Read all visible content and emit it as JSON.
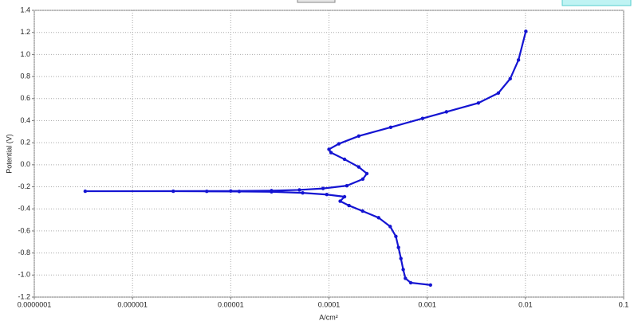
{
  "chart_data": {
    "type": "line",
    "xscale": "log",
    "grid": true,
    "color": "#1414d2",
    "xlabel": "A/cm²",
    "ylabel": "Potential (V)",
    "xlim": [
      1e-07,
      0.1
    ],
    "xticks": [
      {
        "value": 1e-07,
        "label": "0.0000001"
      },
      1e-06,
      1e-05,
      0.0001,
      0.001,
      0.01,
      0.1
    ],
    "ylim": [
      -1.2,
      1.4
    ],
    "yticks": [
      1.4,
      1.2,
      {
        "value": 1.0,
        "label": "1.0"
      },
      0.8,
      0.6,
      0.4,
      0.2,
      {
        "value": 0,
        "label": "0.0"
      },
      -0.2,
      -0.4,
      -0.6,
      -0.8,
      {
        "value": -1.0,
        "label": "-1.0"
      },
      -1.2
    ],
    "x": [
      0.00108,
      0.00068,
      0.0006,
      0.00057,
      0.00054,
      0.00051,
      0.00048,
      0.00042,
      0.00032,
      0.00022,
      0.00016,
      0.00013,
      0.000144,
      9.5e-05,
      5.4e-05,
      2.6e-05,
      1.22e-05,
      5.7e-06,
      2.6e-06,
      3.3e-07,
      1e-05,
      2.6e-05,
      5e-05,
      8.7e-05,
      0.000152,
      0.000221,
      0.000243,
      0.000201,
      0.000144,
      0.000105,
      0.0001,
      0.000126,
      0.000201,
      0.000425,
      0.000897,
      0.00157,
      0.00332,
      0.0053,
      0.007,
      0.0085,
      0.0101
    ],
    "values": [
      -1.09,
      -1.07,
      -1.03,
      -0.95,
      -0.85,
      -0.75,
      -0.65,
      -0.56,
      -0.48,
      -0.42,
      -0.37,
      -0.33,
      -0.29,
      -0.27,
      -0.255,
      -0.245,
      -0.242,
      -0.241,
      -0.24,
      -0.24,
      -0.238,
      -0.235,
      -0.228,
      -0.215,
      -0.19,
      -0.13,
      -0.08,
      -0.02,
      0.05,
      0.11,
      0.14,
      0.19,
      0.26,
      0.34,
      0.42,
      0.48,
      0.56,
      0.65,
      0.78,
      0.95,
      1.21
    ]
  }
}
